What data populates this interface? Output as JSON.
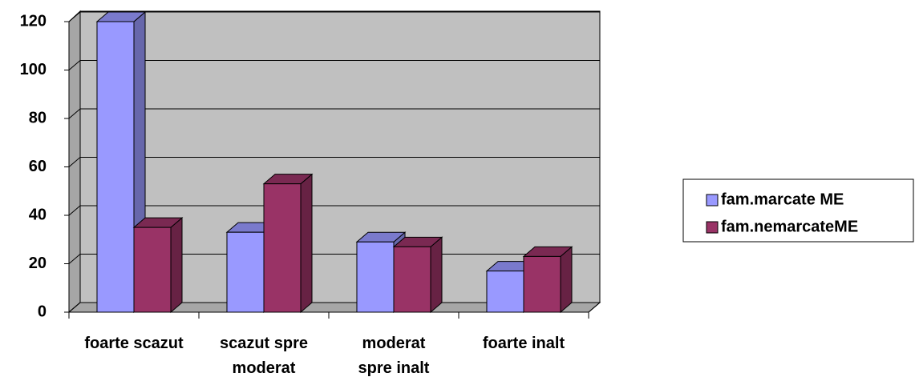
{
  "chart_data": {
    "type": "bar3d",
    "categories": [
      "foarte scazut",
      "scazut spre moderat",
      "moderat spre inalt",
      "foarte inalt"
    ],
    "series": [
      {
        "name": "fam.marcate ME",
        "color": "#9999ff",
        "values": [
          120,
          33,
          29,
          17
        ]
      },
      {
        "name": "fam.nemarcateME",
        "color": "#993366",
        "values": [
          35,
          53,
          27,
          23
        ]
      }
    ],
    "ylim": [
      0,
      120
    ],
    "yticks": [
      0,
      20,
      40,
      60,
      80,
      100,
      120
    ],
    "grid": true,
    "legend": "right"
  }
}
